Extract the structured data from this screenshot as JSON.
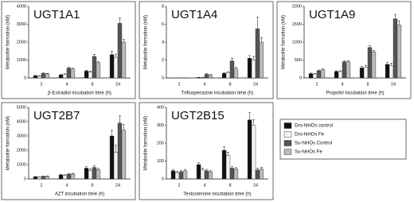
{
  "chart_data": [
    {
      "type": "bar",
      "title": "UGT1A1",
      "y_label": "Metabolite formation (nM)",
      "x_label": "β-Estradiol incubation time (h)",
      "categories": [
        "2",
        "4",
        "8",
        "24"
      ],
      "ylim": [
        0,
        4000
      ],
      "yticks": [
        0,
        1000,
        2000,
        3000,
        4000
      ],
      "series": [
        {
          "name": "Dro-hiHOs control",
          "color": "#111111",
          "values": [
            120,
            170,
            380,
            1300
          ],
          "errors": [
            20,
            30,
            50,
            200
          ]
        },
        {
          "name": "Dro-hiHOs Fe",
          "color": "#f4f4f4",
          "values": [
            100,
            200,
            330,
            1150
          ],
          "errors": [
            20,
            30,
            40,
            180
          ]
        },
        {
          "name": "Su-hiHOs Control",
          "color": "#555555",
          "values": [
            250,
            550,
            1200,
            3050
          ],
          "errors": [
            30,
            50,
            120,
            300
          ]
        },
        {
          "name": "Su-hiHOs Fe",
          "color": "#bbbbbb",
          "values": [
            230,
            500,
            850,
            2000
          ],
          "errors": [
            30,
            40,
            60,
            150
          ]
        }
      ]
    },
    {
      "type": "bar",
      "title": "UGT1A4",
      "y_label": "Metabolite formation (nM)",
      "x_label": "Trifluoperazine incubation time (h)",
      "categories": [
        "2",
        "4",
        "8",
        "24"
      ],
      "ylim": [
        0,
        8
      ],
      "yticks": [
        0,
        2,
        4,
        6,
        8
      ],
      "series": [
        {
          "color": "#111111",
          "values": [
            0,
            0.05,
            0.5,
            2.2
          ],
          "errors": [
            0,
            0.02,
            0.1,
            0.3
          ]
        },
        {
          "color": "#f4f4f4",
          "values": [
            0,
            0.05,
            0.6,
            2.0
          ],
          "errors": [
            0,
            0.02,
            0.1,
            0.4
          ]
        },
        {
          "color": "#555555",
          "values": [
            0,
            0.4,
            1.9,
            5.5
          ],
          "errors": [
            0,
            0.1,
            0.3,
            1.3
          ]
        },
        {
          "color": "#bbbbbb",
          "values": [
            0,
            0.3,
            1.0,
            4.0
          ],
          "errors": [
            0,
            0.1,
            0.2,
            0.5
          ]
        }
      ]
    },
    {
      "type": "bar",
      "title": "UGT1A9",
      "y_label": "Metabolite formation (nM)",
      "x_label": "Propofol incubation time (h)",
      "categories": [
        "2",
        "4",
        "8",
        "24"
      ],
      "ylim": [
        0,
        2000
      ],
      "yticks": [
        0,
        500,
        1000,
        1500,
        2000
      ],
      "series": [
        {
          "color": "#111111",
          "values": [
            120,
            180,
            280,
            380
          ],
          "errors": [
            15,
            20,
            40,
            50
          ]
        },
        {
          "color": "#f4f4f4",
          "values": [
            110,
            180,
            300,
            350
          ],
          "errors": [
            15,
            20,
            50,
            60
          ]
        },
        {
          "color": "#555555",
          "values": [
            200,
            450,
            850,
            1650
          ],
          "errors": [
            20,
            30,
            50,
            120
          ]
        },
        {
          "color": "#bbbbbb",
          "values": [
            230,
            450,
            730,
            1480
          ],
          "errors": [
            20,
            30,
            40,
            120
          ]
        }
      ]
    },
    {
      "type": "bar",
      "title": "UGT2B7",
      "y_label": "Metabolite formation (nM)",
      "x_label": "AZT incubation time (h)",
      "categories": [
        "2",
        "4",
        "8",
        "24"
      ],
      "ylim": [
        0,
        5000
      ],
      "yticks": [
        0,
        1000,
        2000,
        3000,
        4000,
        5000
      ],
      "series": [
        {
          "color": "#111111",
          "values": [
            150,
            280,
            750,
            3000
          ],
          "errors": [
            20,
            40,
            100,
            400
          ]
        },
        {
          "color": "#f4f4f4",
          "values": [
            120,
            250,
            600,
            1850
          ],
          "errors": [
            20,
            40,
            100,
            500
          ]
        },
        {
          "color": "#555555",
          "values": [
            180,
            330,
            800,
            3900
          ],
          "errors": [
            20,
            40,
            120,
            500
          ]
        },
        {
          "color": "#bbbbbb",
          "values": [
            190,
            350,
            650,
            3400
          ],
          "errors": [
            20,
            40,
            80,
            400
          ]
        }
      ]
    },
    {
      "type": "bar",
      "title": "UGT2B15",
      "y_label": "Metabolite formation (nM)",
      "x_label": "Testosterone incubation time (h)",
      "categories": [
        "2",
        "4",
        "8",
        "24"
      ],
      "ylim": [
        0,
        400
      ],
      "yticks": [
        0,
        100,
        200,
        300,
        400
      ],
      "series": [
        {
          "color": "#111111",
          "values": [
            45,
            80,
            160,
            330
          ],
          "errors": [
            8,
            10,
            20,
            40
          ]
        },
        {
          "color": "#f4f4f4",
          "values": [
            35,
            50,
            130,
            300
          ],
          "errors": [
            8,
            10,
            20,
            30
          ]
        },
        {
          "color": "#555555",
          "values": [
            40,
            45,
            60,
            50
          ],
          "errors": [
            8,
            8,
            8,
            10
          ]
        },
        {
          "color": "#bbbbbb",
          "values": [
            45,
            40,
            55,
            55
          ],
          "errors": [
            8,
            8,
            8,
            10
          ]
        }
      ]
    }
  ]
}
